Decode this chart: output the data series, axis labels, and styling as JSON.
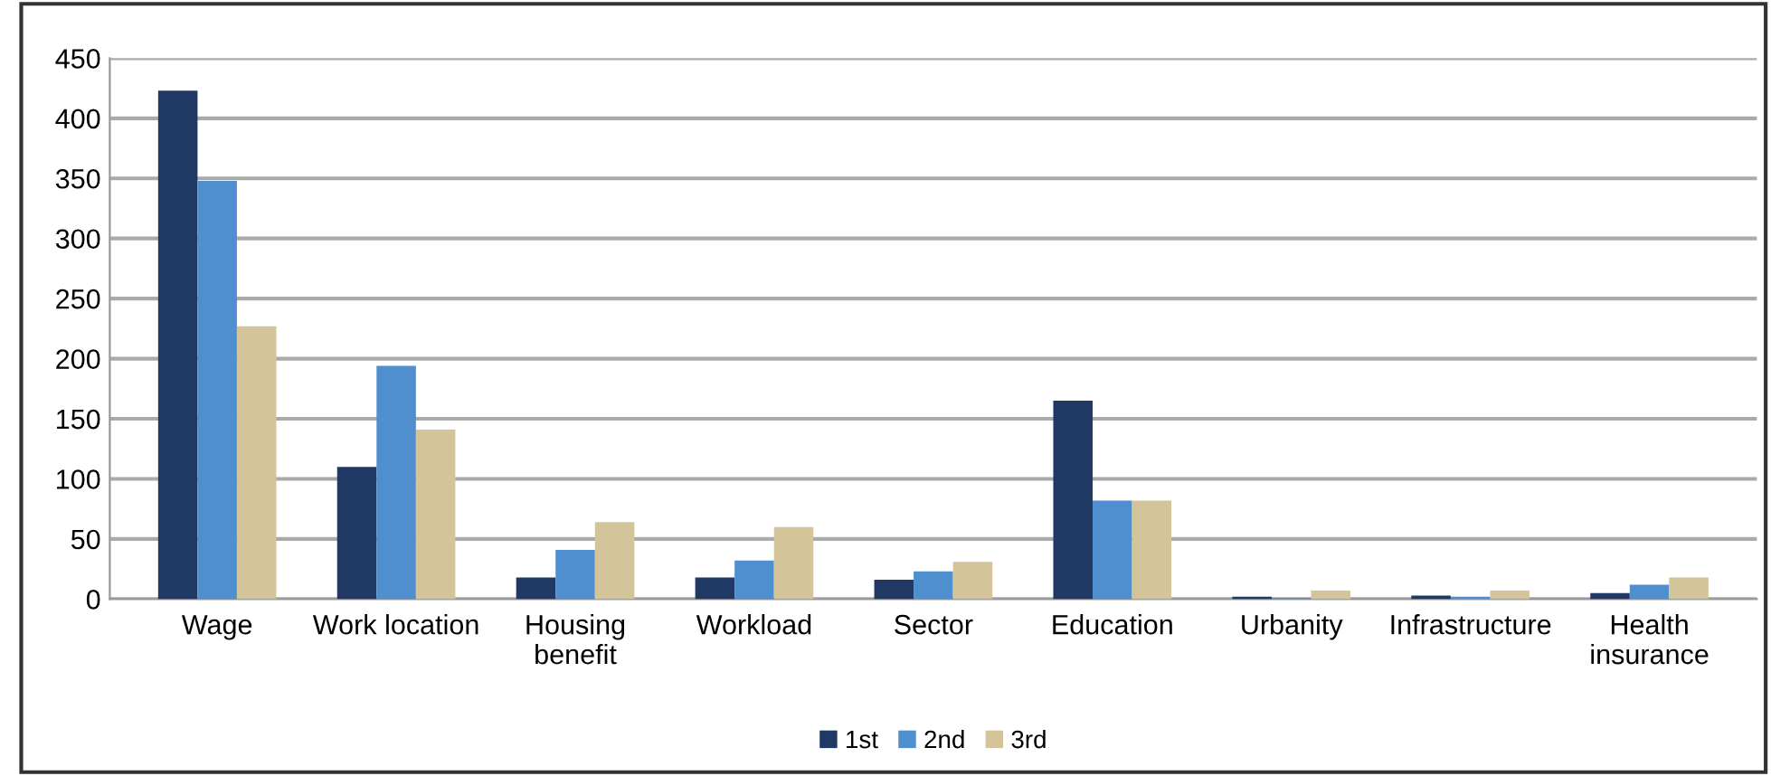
{
  "chart_data": {
    "type": "bar",
    "categories": [
      "Wage",
      "Work location",
      "Housing\nbenefit",
      "Workload",
      "Sector",
      "Education",
      "Urbanity",
      "Infrastructure",
      "Health\ninsurance"
    ],
    "series": [
      {
        "name": "1st",
        "color": "#1f3864",
        "values": [
          423,
          110,
          18,
          18,
          16,
          165,
          2,
          3,
          5
        ]
      },
      {
        "name": "2nd",
        "color": "#4f8fd0",
        "values": [
          348,
          194,
          41,
          32,
          23,
          82,
          1,
          2,
          12
        ]
      },
      {
        "name": "3rd",
        "color": "#d4c49a",
        "values": [
          227,
          141,
          64,
          60,
          31,
          82,
          7,
          7,
          18
        ]
      }
    ],
    "ylim": [
      0,
      450
    ],
    "yticks": [
      0,
      50,
      100,
      150,
      200,
      250,
      300,
      350,
      400,
      450
    ],
    "grid": "y",
    "legend": "bottom"
  }
}
